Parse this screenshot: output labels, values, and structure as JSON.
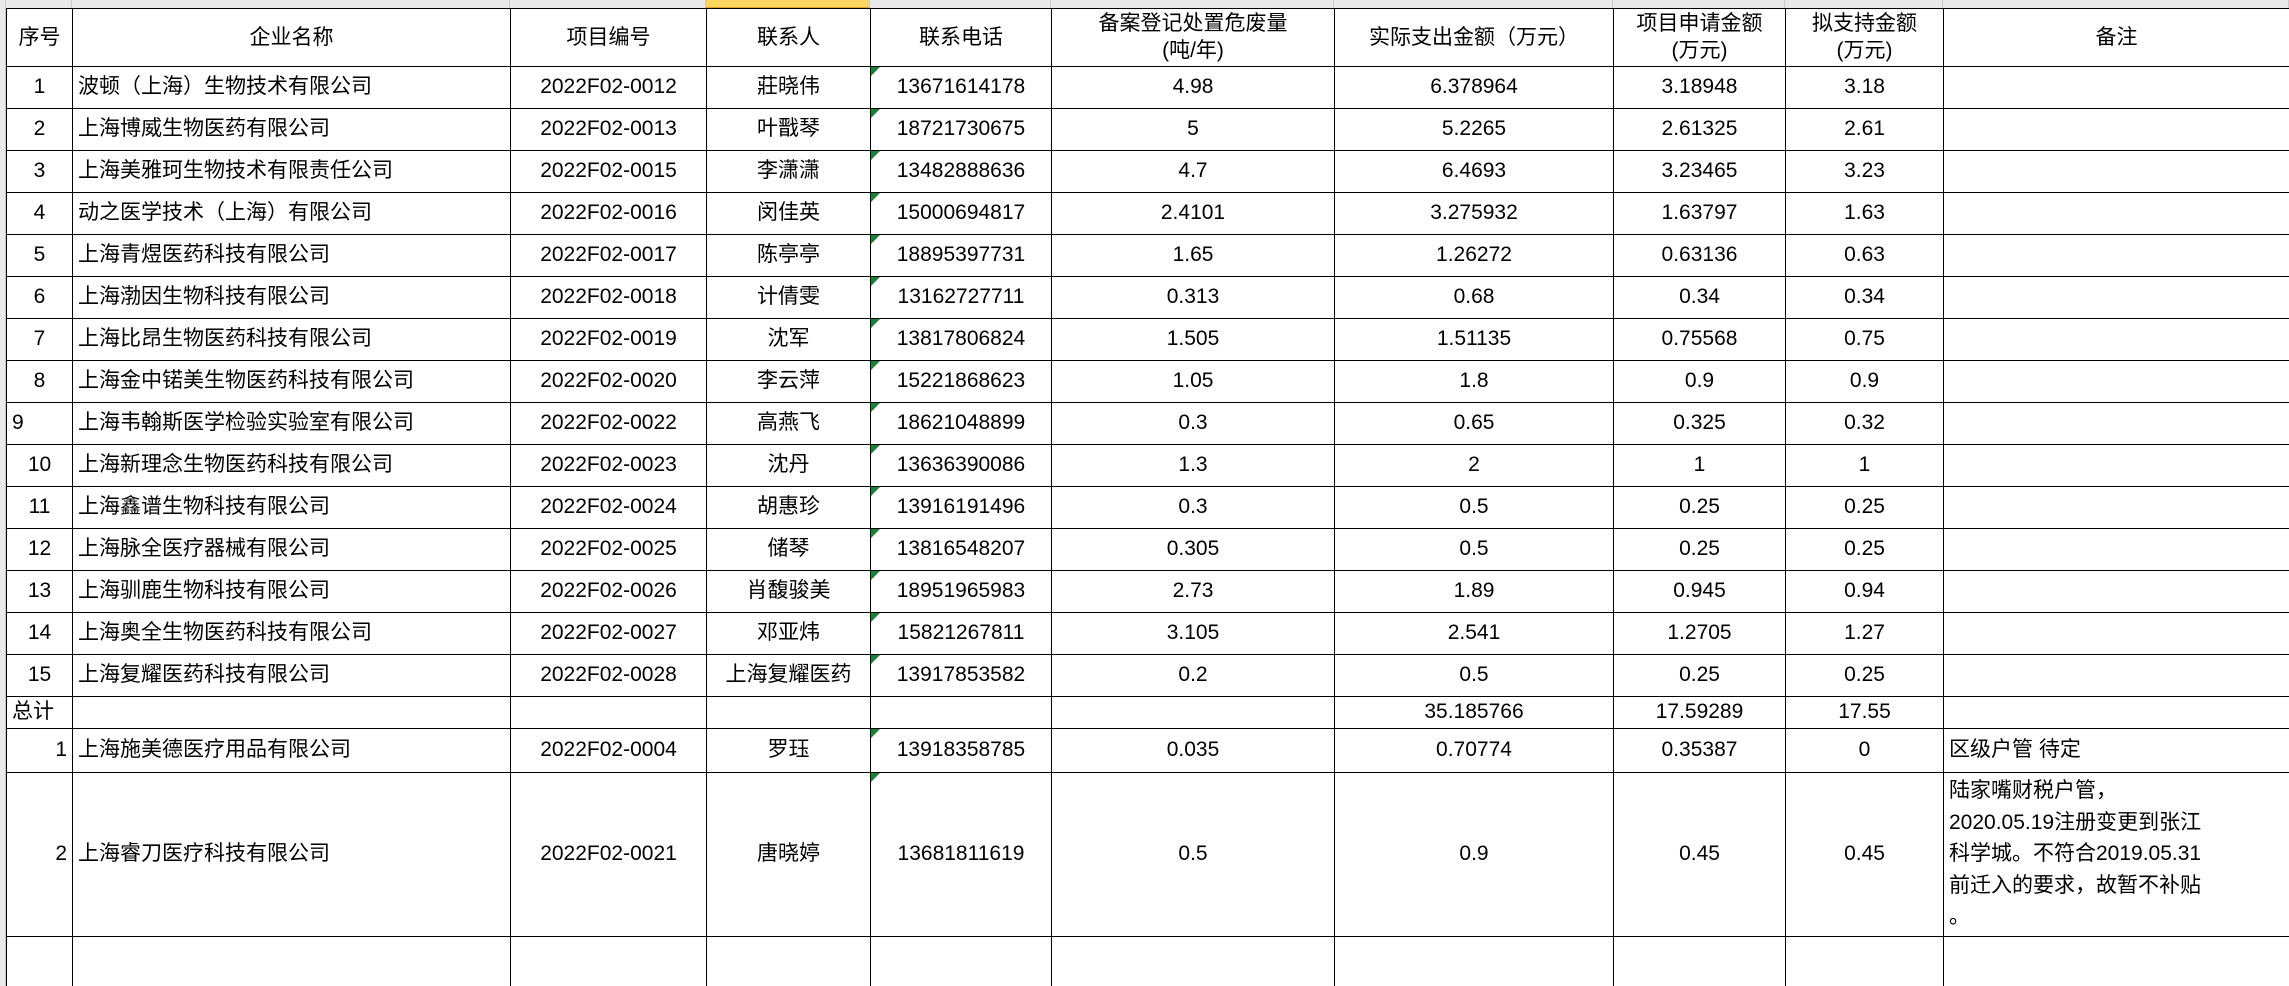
{
  "app": {
    "type": "spreadsheet-grid"
  },
  "colors": {
    "grid_line": "#000000",
    "chrome_strip": "#e9e9e9",
    "selected_column_header": "#fcd75f",
    "error_triangle": "#1d8038",
    "selection_border": "#000000",
    "background": "#ffffff"
  },
  "table": {
    "headers": {
      "seq": "序号",
      "company": "企业名称",
      "code": "项目编号",
      "contact": "联系人",
      "phone": "联系电话",
      "waste": "备案登记处置危废量\n(吨/年)",
      "actual": "实际支出金额（万元）",
      "applied": "项目申请金额\n(万元)",
      "support": "拟支持金额\n(万元)",
      "remark": "备注"
    },
    "rows": [
      {
        "kind": "data",
        "seq": "1",
        "company": "波顿（上海）生物技术有限公司",
        "code": "2022F02-0012",
        "contact": "莊晓伟",
        "phone": "13671614178",
        "waste": "4.98",
        "actual": "6.378964",
        "applied": "3.18948",
        "support": "3.18",
        "remark": ""
      },
      {
        "kind": "data",
        "seq": "2",
        "company": "上海博威生物医药有限公司",
        "code": "2022F02-0013",
        "contact": "叶戬琴",
        "phone": "18721730675",
        "waste": "5",
        "actual": "5.2265",
        "applied": "2.61325",
        "support": "2.61",
        "remark": ""
      },
      {
        "kind": "data",
        "seq": "3",
        "company": "上海美雅珂生物技术有限责任公司",
        "code": "2022F02-0015",
        "contact": "李潇潇",
        "phone": "13482888636",
        "waste": "4.7",
        "actual": "6.4693",
        "applied": "3.23465",
        "support": "3.23",
        "remark": ""
      },
      {
        "kind": "data",
        "seq": "4",
        "company": "动之医学技术（上海）有限公司",
        "code": "2022F02-0016",
        "contact": "闵佳英",
        "phone": "15000694817",
        "waste": "2.4101",
        "actual": "3.275932",
        "applied": "1.63797",
        "support": "1.63",
        "remark": ""
      },
      {
        "kind": "data",
        "seq": "5",
        "company": "上海青煜医药科技有限公司",
        "code": "2022F02-0017",
        "contact": "陈亭亭",
        "phone": "18895397731",
        "waste": "1.65",
        "actual": "1.26272",
        "applied": "0.63136",
        "support": "0.63",
        "remark": ""
      },
      {
        "kind": "data",
        "seq": "6",
        "company": "上海渤因生物科技有限公司",
        "code": "2022F02-0018",
        "contact": "计倩雯",
        "phone": "13162727711",
        "waste": "0.313",
        "actual": "0.68",
        "applied": "0.34",
        "support": "0.34",
        "remark": ""
      },
      {
        "kind": "data",
        "seq": "7",
        "company": "上海比昂生物医药科技有限公司",
        "code": "2022F02-0019",
        "contact": "沈军",
        "phone": "13817806824",
        "waste": "1.505",
        "actual": "1.51135",
        "applied": "0.75568",
        "support": "0.75",
        "remark": ""
      },
      {
        "kind": "data",
        "seq": "8",
        "company": "上海金中锘美生物医药科技有限公司",
        "code": "2022F02-0020",
        "contact": "李云萍",
        "phone": "15221868623",
        "waste": "1.05",
        "actual": "1.8",
        "applied": "0.9",
        "support": "0.9",
        "remark": ""
      },
      {
        "kind": "data",
        "seq": "9",
        "seq_align": "left",
        "company": "上海韦翰斯医学检验实验室有限公司",
        "code": "2022F02-0022",
        "contact": "高燕飞",
        "phone": "18621048899",
        "waste": "0.3",
        "actual": "0.65",
        "applied": "0.325",
        "support": "0.32",
        "remark": "",
        "selected_field": "contact"
      },
      {
        "kind": "data",
        "seq": "10",
        "company": "上海新理念生物医药科技有限公司",
        "code": "2022F02-0023",
        "contact": "沈丹",
        "phone": "13636390086",
        "waste": "1.3",
        "actual": "2",
        "applied": "1",
        "support": "1",
        "remark": ""
      },
      {
        "kind": "data",
        "seq": "11",
        "company": "上海鑫谱生物科技有限公司",
        "code": "2022F02-0024",
        "contact": "胡惠珍",
        "phone": "13916191496",
        "waste": "0.3",
        "actual": "0.5",
        "applied": "0.25",
        "support": "0.25",
        "remark": ""
      },
      {
        "kind": "data",
        "seq": "12",
        "company": "上海脉全医疗器械有限公司",
        "code": "2022F02-0025",
        "contact": "储琴",
        "phone": "13816548207",
        "waste": "0.305",
        "actual": "0.5",
        "applied": "0.25",
        "support": "0.25",
        "remark": ""
      },
      {
        "kind": "data",
        "seq": "13",
        "company": "上海驯鹿生物科技有限公司",
        "code": "2022F02-0026",
        "contact": "肖馥骏美",
        "phone": "18951965983",
        "waste": "2.73",
        "actual": "1.89",
        "applied": "0.945",
        "support": "0.94",
        "remark": ""
      },
      {
        "kind": "data",
        "seq": "14",
        "company": "上海奥全生物医药科技有限公司",
        "code": "2022F02-0027",
        "contact": "邓亚炜",
        "phone": "15821267811",
        "waste": "3.105",
        "actual": "2.541",
        "applied": "1.2705",
        "support": "1.27",
        "remark": ""
      },
      {
        "kind": "data",
        "seq": "15",
        "company": "上海复耀医药科技有限公司",
        "code": "2022F02-0028",
        "contact": "上海复耀医药",
        "phone": "13917853582",
        "waste": "0.2",
        "actual": "0.5",
        "applied": "0.25",
        "support": "0.25",
        "remark": ""
      },
      {
        "kind": "total",
        "seq": "总计",
        "seq_align": "left",
        "company": "",
        "code": "",
        "contact": "",
        "phone": "",
        "waste": "",
        "actual": "35.185766",
        "applied": "17.59289",
        "support": "17.55",
        "remark": ""
      },
      {
        "kind": "extra",
        "seq": "1",
        "seq_align": "right",
        "company": "上海施美德医疗用品有限公司",
        "code": "2022F02-0004",
        "contact": "罗珏",
        "phone": "13918358785",
        "waste": "0.035",
        "actual": "0.70774",
        "applied": "0.35387",
        "support": "0",
        "remark": "区级户管 待定"
      },
      {
        "kind": "extra-tall",
        "seq": "2",
        "seq_align": "right",
        "company": "上海睿刀医疗科技有限公司",
        "code": "2022F02-0021",
        "contact": "唐晓婷",
        "phone": "13681811619",
        "waste": "0.5",
        "actual": "0.9",
        "applied": "0.45",
        "support": "0.45",
        "remark": "陆家嘴财税户管，\n2020.05.19注册变更到张江\n科学城。不符合2019.05.31\n前迁入的要求，故暂不补贴\n。"
      }
    ],
    "selection": {
      "active_cell_value": "高燕飞",
      "active_row_seq": "9",
      "active_column": "联系人"
    }
  }
}
